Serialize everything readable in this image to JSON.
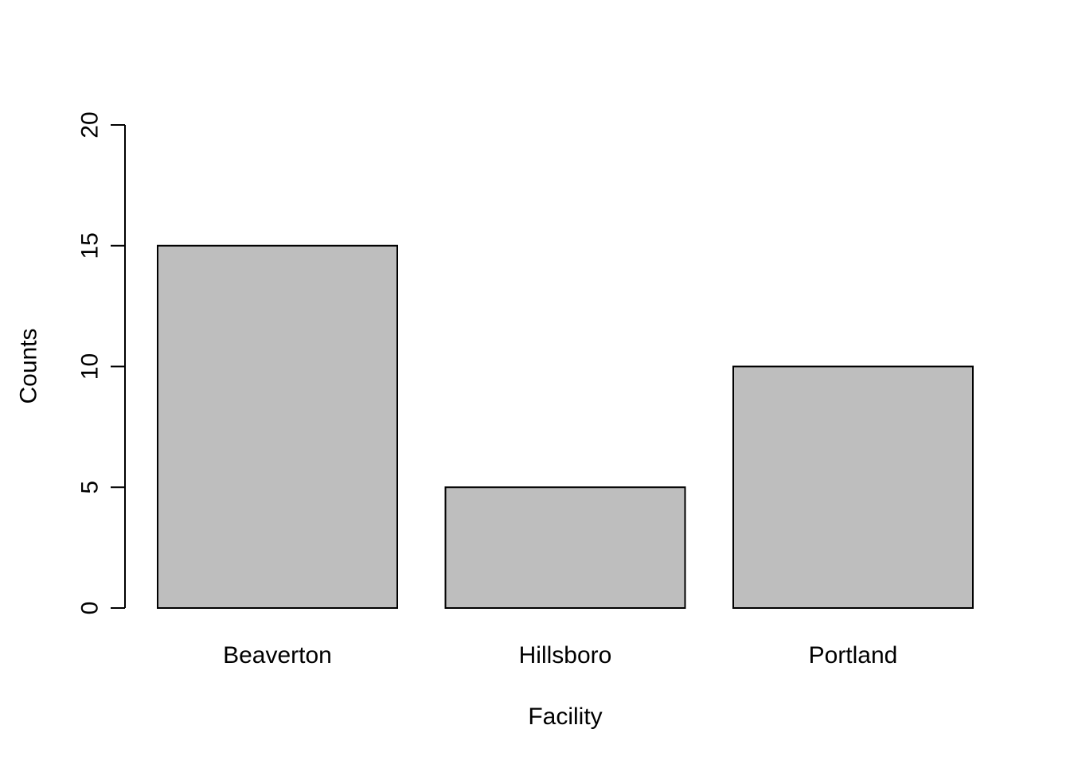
{
  "chart_data": {
    "type": "bar",
    "categories": [
      "Beaverton",
      "Hillsboro",
      "Portland"
    ],
    "values": [
      15,
      5,
      10
    ],
    "title": "",
    "xlabel": "Facility",
    "ylabel": "Counts",
    "ylim": [
      0,
      20
    ],
    "yticks": [
      0,
      5,
      10,
      15,
      20
    ],
    "grid": false,
    "bar_color": "#bebebe",
    "bar_border_color": "#000000"
  }
}
